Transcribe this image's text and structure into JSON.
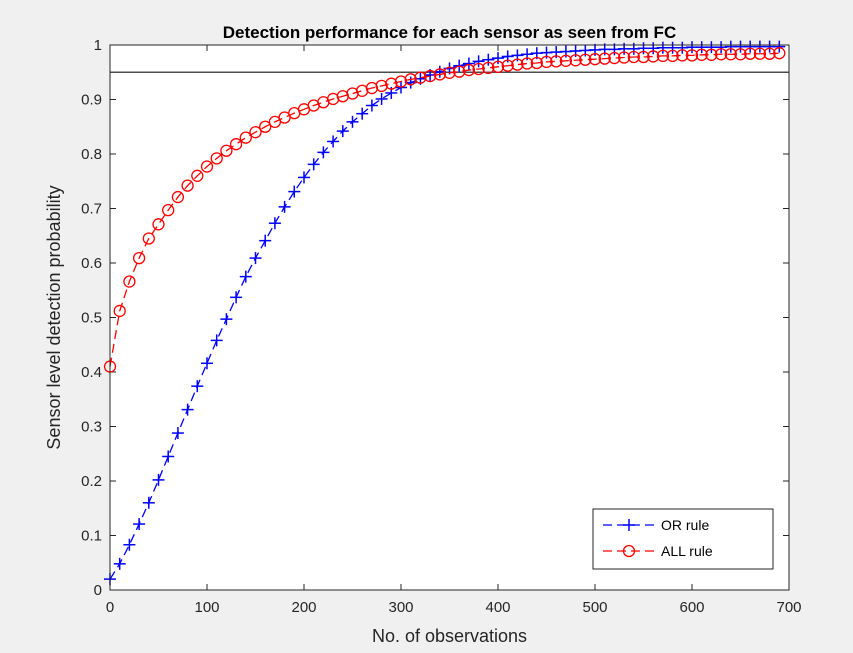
{
  "chart_data": {
    "type": "line",
    "title": "Detection performance for each sensor as seen from FC",
    "xlabel": "No. of observations",
    "ylabel": "Sensor level detection probability",
    "xlim": [
      0,
      700
    ],
    "ylim": [
      0,
      1
    ],
    "xticks": [
      "0",
      "100",
      "200",
      "300",
      "400",
      "500",
      "600",
      "700"
    ],
    "yticks": [
      "0",
      "0.1",
      "0.2",
      "0.3",
      "0.4",
      "0.5",
      "0.6",
      "0.7",
      "0.8",
      "0.9",
      "1"
    ],
    "grid": false,
    "legend": "bottom-right",
    "reference_line": {
      "y": 0.95,
      "color": "#4d4d4d"
    },
    "series": [
      {
        "name": "OR rule",
        "color": "#0000ff",
        "marker": "plus",
        "line": "dashed",
        "x": [
          0,
          10,
          20,
          30,
          40,
          50,
          60,
          70,
          80,
          90,
          100,
          110,
          120,
          130,
          140,
          150,
          160,
          170,
          180,
          190,
          200,
          210,
          220,
          230,
          240,
          250,
          260,
          270,
          280,
          290,
          300,
          310,
          320,
          330,
          340,
          350,
          360,
          370,
          380,
          390,
          400,
          410,
          420,
          430,
          440,
          450,
          460,
          470,
          480,
          490,
          500,
          510,
          520,
          530,
          540,
          550,
          560,
          570,
          580,
          590,
          600,
          610,
          620,
          630,
          640,
          650,
          660,
          670,
          680,
          690
        ],
        "values": [
          0.02,
          0.048,
          0.083,
          0.121,
          0.16,
          0.202,
          0.245,
          0.288,
          0.331,
          0.374,
          0.416,
          0.458,
          0.497,
          0.537,
          0.575,
          0.609,
          0.641,
          0.673,
          0.703,
          0.731,
          0.757,
          0.781,
          0.803,
          0.823,
          0.842,
          0.859,
          0.874,
          0.889,
          0.901,
          0.912,
          0.922,
          0.931,
          0.938,
          0.945,
          0.951,
          0.957,
          0.962,
          0.966,
          0.97,
          0.973,
          0.976,
          0.979,
          0.981,
          0.983,
          0.985,
          0.986,
          0.987,
          0.988,
          0.989,
          0.99,
          0.991,
          0.992,
          0.992,
          0.993,
          0.993,
          0.994,
          0.994,
          0.995,
          0.995,
          0.995,
          0.996,
          0.996,
          0.996,
          0.996,
          0.997,
          0.997,
          0.997,
          0.997,
          0.997,
          0.997
        ]
      },
      {
        "name": "ALL rule",
        "color": "#ff0000",
        "marker": "circle",
        "line": "dashed",
        "x": [
          0,
          10,
          20,
          30,
          40,
          50,
          60,
          70,
          80,
          90,
          100,
          110,
          120,
          130,
          140,
          150,
          160,
          170,
          180,
          190,
          200,
          210,
          220,
          230,
          240,
          250,
          260,
          270,
          280,
          290,
          300,
          310,
          320,
          330,
          340,
          350,
          360,
          370,
          380,
          390,
          400,
          410,
          420,
          430,
          440,
          450,
          460,
          470,
          480,
          490,
          500,
          510,
          520,
          530,
          540,
          550,
          560,
          570,
          580,
          590,
          600,
          610,
          620,
          630,
          640,
          650,
          660,
          670,
          680,
          690
        ],
        "values": [
          0.41,
          0.512,
          0.566,
          0.609,
          0.645,
          0.671,
          0.697,
          0.721,
          0.742,
          0.76,
          0.777,
          0.792,
          0.806,
          0.818,
          0.83,
          0.84,
          0.85,
          0.859,
          0.867,
          0.875,
          0.882,
          0.889,
          0.895,
          0.901,
          0.906,
          0.911,
          0.916,
          0.921,
          0.925,
          0.929,
          0.933,
          0.937,
          0.94,
          0.943,
          0.946,
          0.949,
          0.951,
          0.954,
          0.956,
          0.958,
          0.96,
          0.962,
          0.964,
          0.966,
          0.967,
          0.969,
          0.97,
          0.971,
          0.972,
          0.973,
          0.974,
          0.975,
          0.976,
          0.977,
          0.978,
          0.978,
          0.979,
          0.98,
          0.98,
          0.981,
          0.981,
          0.982,
          0.982,
          0.983,
          0.983,
          0.983,
          0.984,
          0.984,
          0.984,
          0.985
        ]
      }
    ]
  },
  "legend": {
    "entries": [
      "OR rule",
      "ALL rule"
    ]
  }
}
